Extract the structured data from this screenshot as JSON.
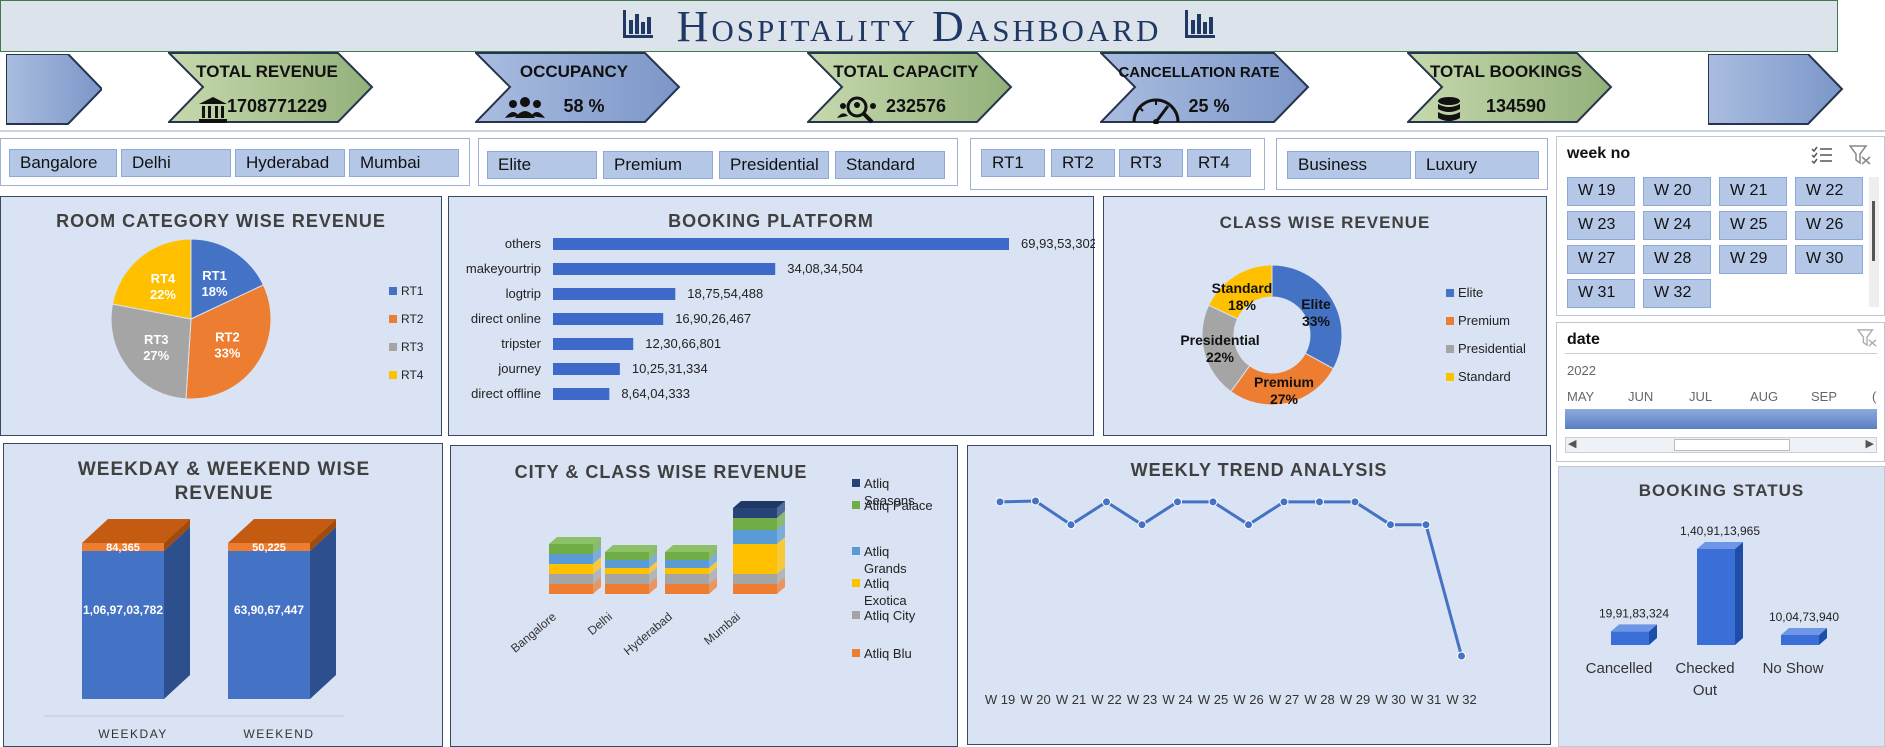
{
  "header": {
    "title": "Hospitality Dashboard",
    "left_icon": "bar-chart-icon",
    "right_icon": "bar-chart-icon"
  },
  "kpis": [
    {
      "label": "TOTAL REVENUE",
      "value": "1708771229",
      "icon": "bank-icon"
    },
    {
      "label": "OCCUPANCY",
      "value": "58 %",
      "icon": "users-icon"
    },
    {
      "label": "TOTAL CAPACITY",
      "value": "232576",
      "icon": "group-search-icon"
    },
    {
      "label": "CANCELLATION  RATE",
      "value": "25 %",
      "icon": "gauge-icon"
    },
    {
      "label": "TOTAL BOOKINGS",
      "value": "134590",
      "icon": "database-icon"
    }
  ],
  "slicers": {
    "city": [
      "Bangalore",
      "Delhi",
      "Hyderabad",
      "Mumbai"
    ],
    "room_class": [
      "Elite",
      "Premium",
      "Presidential",
      "Standard"
    ],
    "room_type": [
      "RT1",
      "RT2",
      "RT3",
      "RT4"
    ],
    "day_type": [
      "Business",
      "Luxury"
    ],
    "week_no": {
      "title": "week no",
      "items": [
        "W 19",
        "W 20",
        "W 21",
        "W 22",
        "W 23",
        "W 24",
        "W 25",
        "W 26",
        "W 27",
        "W 28",
        "W 29",
        "W 30",
        "W 31",
        "W 32"
      ]
    },
    "date": {
      "title": "date",
      "year": "2022",
      "months": [
        "MAY",
        "JUN",
        "JUL",
        "AUG",
        "SEP",
        "("
      ]
    }
  },
  "colors": {
    "blue": "#4472c4",
    "orange": "#ed7d31",
    "gray": "#a5a5a5",
    "yellow": "#ffc000",
    "navy": "#264478",
    "green": "#70ad47",
    "lightblue": "#5b9bd5"
  },
  "chart_data": [
    {
      "type": "pie",
      "title": "ROOM CATEGORY WISE REVENUE",
      "categories": [
        "RT1",
        "RT2",
        "RT3",
        "RT4"
      ],
      "values": [
        18,
        33,
        27,
        22
      ],
      "labels": [
        "18%",
        "33%",
        "27%",
        "22%"
      ],
      "legend": "right"
    },
    {
      "type": "bar",
      "title": "BOOKING PLATFORM",
      "orientation": "horizontal",
      "categories": [
        "others",
        "makeyourtrip",
        "logtrip",
        "direct online",
        "tripster",
        "journey",
        "direct offline"
      ],
      "values": [
        699353302,
        340834504,
        187554488,
        169026467,
        123066801,
        102531334,
        86404333
      ],
      "labels": [
        "69,93,53,302",
        "34,08,34,504",
        "18,75,54,488",
        "16,90,26,467",
        "12,30,66,801",
        "10,25,31,334",
        "8,64,04,333"
      ]
    },
    {
      "type": "pie",
      "title": "CLASS WISE REVENUE",
      "donut": true,
      "categories": [
        "Elite",
        "Premium",
        "Presidential",
        "Standard"
      ],
      "values": [
        33,
        27,
        22,
        18
      ],
      "labels": [
        "33%",
        "27%",
        "22%",
        "18%"
      ],
      "legend": "right"
    },
    {
      "type": "bar",
      "title": "WEEKDAY & WEEKEND WISE REVENUE",
      "stacked": true,
      "categories": [
        "WEEKDAY",
        "WEEKEND"
      ],
      "series": [
        {
          "name": "",
          "values": [
            1069703782,
            639067447
          ],
          "labels": [
            "1,06,97,03,782",
            "63,90,67,447"
          ]
        },
        {
          "name": "",
          "values": [
            84365,
            50225
          ],
          "labels": [
            "84,365",
            "50,225"
          ]
        }
      ]
    },
    {
      "type": "bar",
      "title": "CITY & CLASS WISE REVENUE",
      "stacked": true,
      "categories": [
        "Bangalore",
        "Delhi",
        "Hyderabad",
        "Mumbai"
      ],
      "series": [
        {
          "name": "Atliq Blu",
          "values": [
            1,
            1,
            1,
            1
          ]
        },
        {
          "name": "Atliq City",
          "values": [
            1,
            1,
            1,
            1
          ]
        },
        {
          "name": "Atliq Exotica",
          "values": [
            1,
            0.6,
            0.6,
            3
          ]
        },
        {
          "name": "Atliq Grands",
          "values": [
            1,
            0.8,
            0.8,
            1.4
          ]
        },
        {
          "name": "Atliq Palace",
          "values": [
            1,
            0.8,
            0.8,
            1.2
          ]
        },
        {
          "name": "Atliq Seasons",
          "values": [
            0,
            0,
            0,
            1
          ]
        }
      ],
      "legend": "right"
    },
    {
      "type": "line",
      "title": "WEEKLY TREND ANALYSIS",
      "categories": [
        "W 19",
        "W 20",
        "W 21",
        "W 22",
        "W 23",
        "W 24",
        "W 25",
        "W 26",
        "W 27",
        "W 28",
        "W 29",
        "W 30",
        "W 31",
        "W 32"
      ],
      "values": [
        94,
        94.3,
        86,
        94,
        86,
        94,
        94,
        86,
        94,
        94,
        94,
        86,
        86,
        40
      ]
    },
    {
      "type": "bar",
      "title": "BOOKING STATUS",
      "categories": [
        "Cancelled",
        "Checked Out",
        "No Show"
      ],
      "values": [
        199183324,
        1409113965,
        100473940
      ],
      "labels": [
        "19,91,83,324",
        "1,40,91,13,965",
        "10,04,73,940"
      ]
    }
  ]
}
